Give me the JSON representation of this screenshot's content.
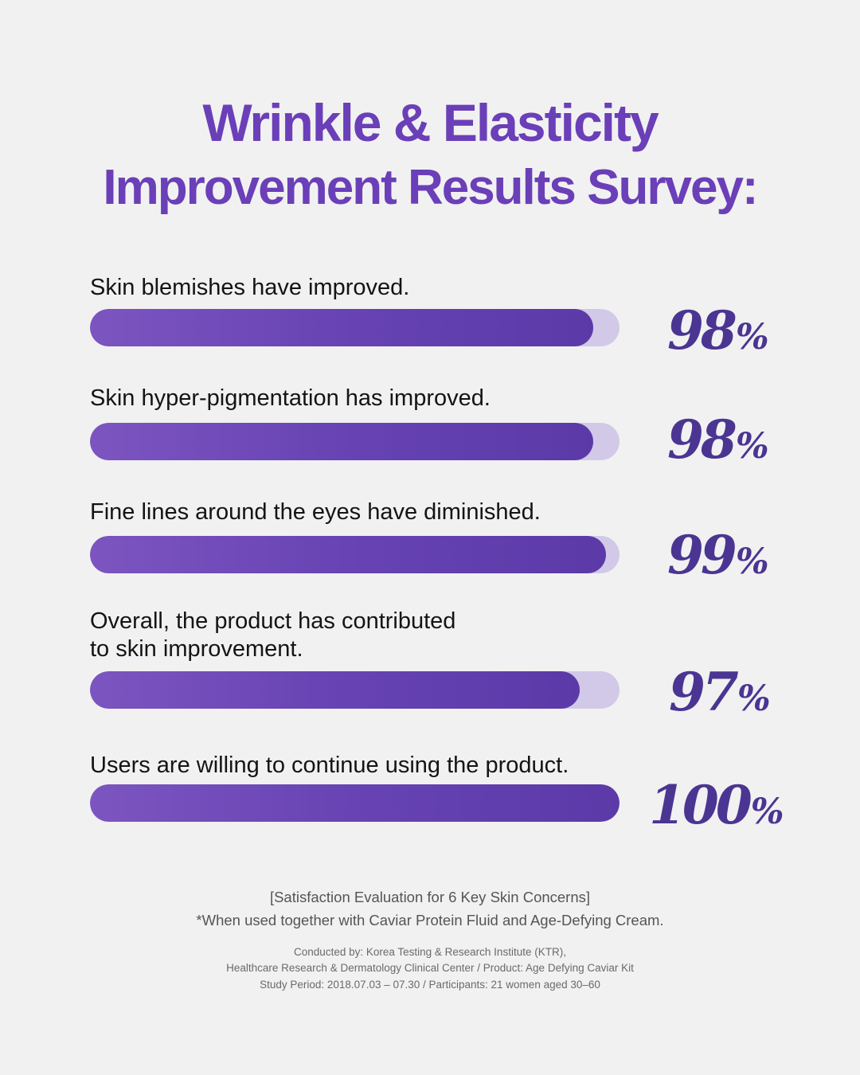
{
  "header": {
    "title_line1": "Wrinkle & Elasticity",
    "title_line2": "Improvement Results Survey:"
  },
  "colors": {
    "background": "#f1f1f1",
    "title": "#6a3fb8",
    "bar_fill": "#6743b3",
    "bar_track": "#d2c9e8",
    "value_text": "#4b3592"
  },
  "chart_data": {
    "type": "bar",
    "orientation": "horizontal",
    "title": "Wrinkle & Elasticity Improvement Results Survey:",
    "categories": [
      "Skin blemishes have improved.",
      "Skin hyper-pigmentation has improved.",
      "Fine lines around the eyes have diminished.",
      "Overall, the product has contributed to skin improvement.",
      "Users are willing to continue using the product."
    ],
    "values": [
      98,
      98,
      99,
      97,
      100
    ],
    "unit": "%",
    "xlim": [
      0,
      100
    ],
    "grid": false,
    "legend": "none",
    "data_labels": [
      "98%",
      "98%",
      "99%",
      "97%",
      "100%"
    ]
  },
  "rows": [
    {
      "label_lines": [
        "Skin blemishes have improved."
      ],
      "number": "98",
      "unit": "%"
    },
    {
      "label_lines": [
        "Skin hyper-pigmentation has improved."
      ],
      "number": "98",
      "unit": "%"
    },
    {
      "label_lines": [
        "Fine lines around the eyes have diminished."
      ],
      "number": "99",
      "unit": "%"
    },
    {
      "label_lines": [
        "Overall, the product has contributed",
        "to skin improvement."
      ],
      "number": "97",
      "unit": "%"
    },
    {
      "label_lines": [
        "Users are willing to continue using the product."
      ],
      "number": "100",
      "unit": "%"
    }
  ],
  "footer": {
    "line1": "[Satisfaction Evaluation for 6 Key Skin Concerns]",
    "line2": "*When used together with Caviar Protein Fluid and Age-Defying Cream.",
    "line3": "Conducted by: Korea Testing & Research Institute (KTR),",
    "line4": "Healthcare Research & Dermatology Clinical Center / Product: Age Defying Caviar Kit",
    "line5": "Study Period: 2018.07.03 – 07.30 / Participants: 21 women aged 30–60"
  }
}
